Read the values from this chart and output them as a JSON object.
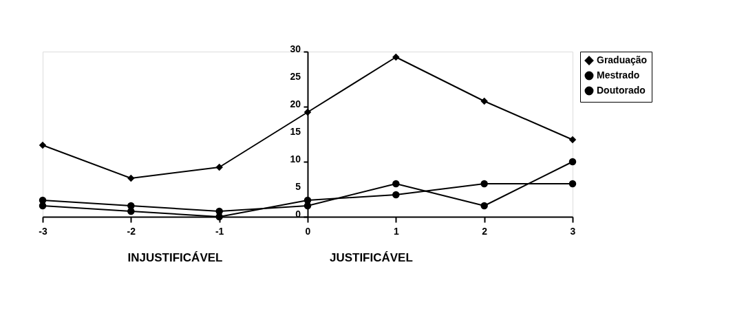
{
  "chart_data": {
    "type": "line",
    "x": [
      -3,
      -2,
      -1,
      0,
      1,
      2,
      3
    ],
    "series": [
      {
        "name": "Graduação",
        "color": "#000000",
        "marker": "diamond",
        "values": [
          13,
          7,
          9,
          19,
          29,
          21,
          14
        ]
      },
      {
        "name": "Mestrado",
        "color": "#000000",
        "marker": "circle",
        "values": [
          3,
          2,
          1,
          2,
          6,
          2,
          10
        ]
      },
      {
        "name": "Doutorado",
        "color": "#000000",
        "marker": "circle",
        "values": [
          2,
          1,
          0,
          3,
          4,
          6,
          6
        ]
      }
    ],
    "xlim": [
      -3,
      3
    ],
    "xticks": [
      {
        "value": -3,
        "label": "-3"
      },
      {
        "value": -2,
        "label": "-2"
      },
      {
        "value": -1,
        "label": "-1"
      },
      {
        "value": 0,
        "label": "0"
      },
      {
        "value": 1,
        "label": "1"
      },
      {
        "value": 2,
        "label": "2"
      },
      {
        "value": 3,
        "label": "3"
      }
    ],
    "ylim": [
      0,
      30
    ],
    "yticks": [
      0,
      5,
      10,
      15,
      20,
      25,
      30
    ],
    "annotations": [
      "INJUSTIFICÁVEL",
      "JUSTIFICÁVEL"
    ],
    "grid": false,
    "legend": "right",
    "line_style": "solid"
  }
}
